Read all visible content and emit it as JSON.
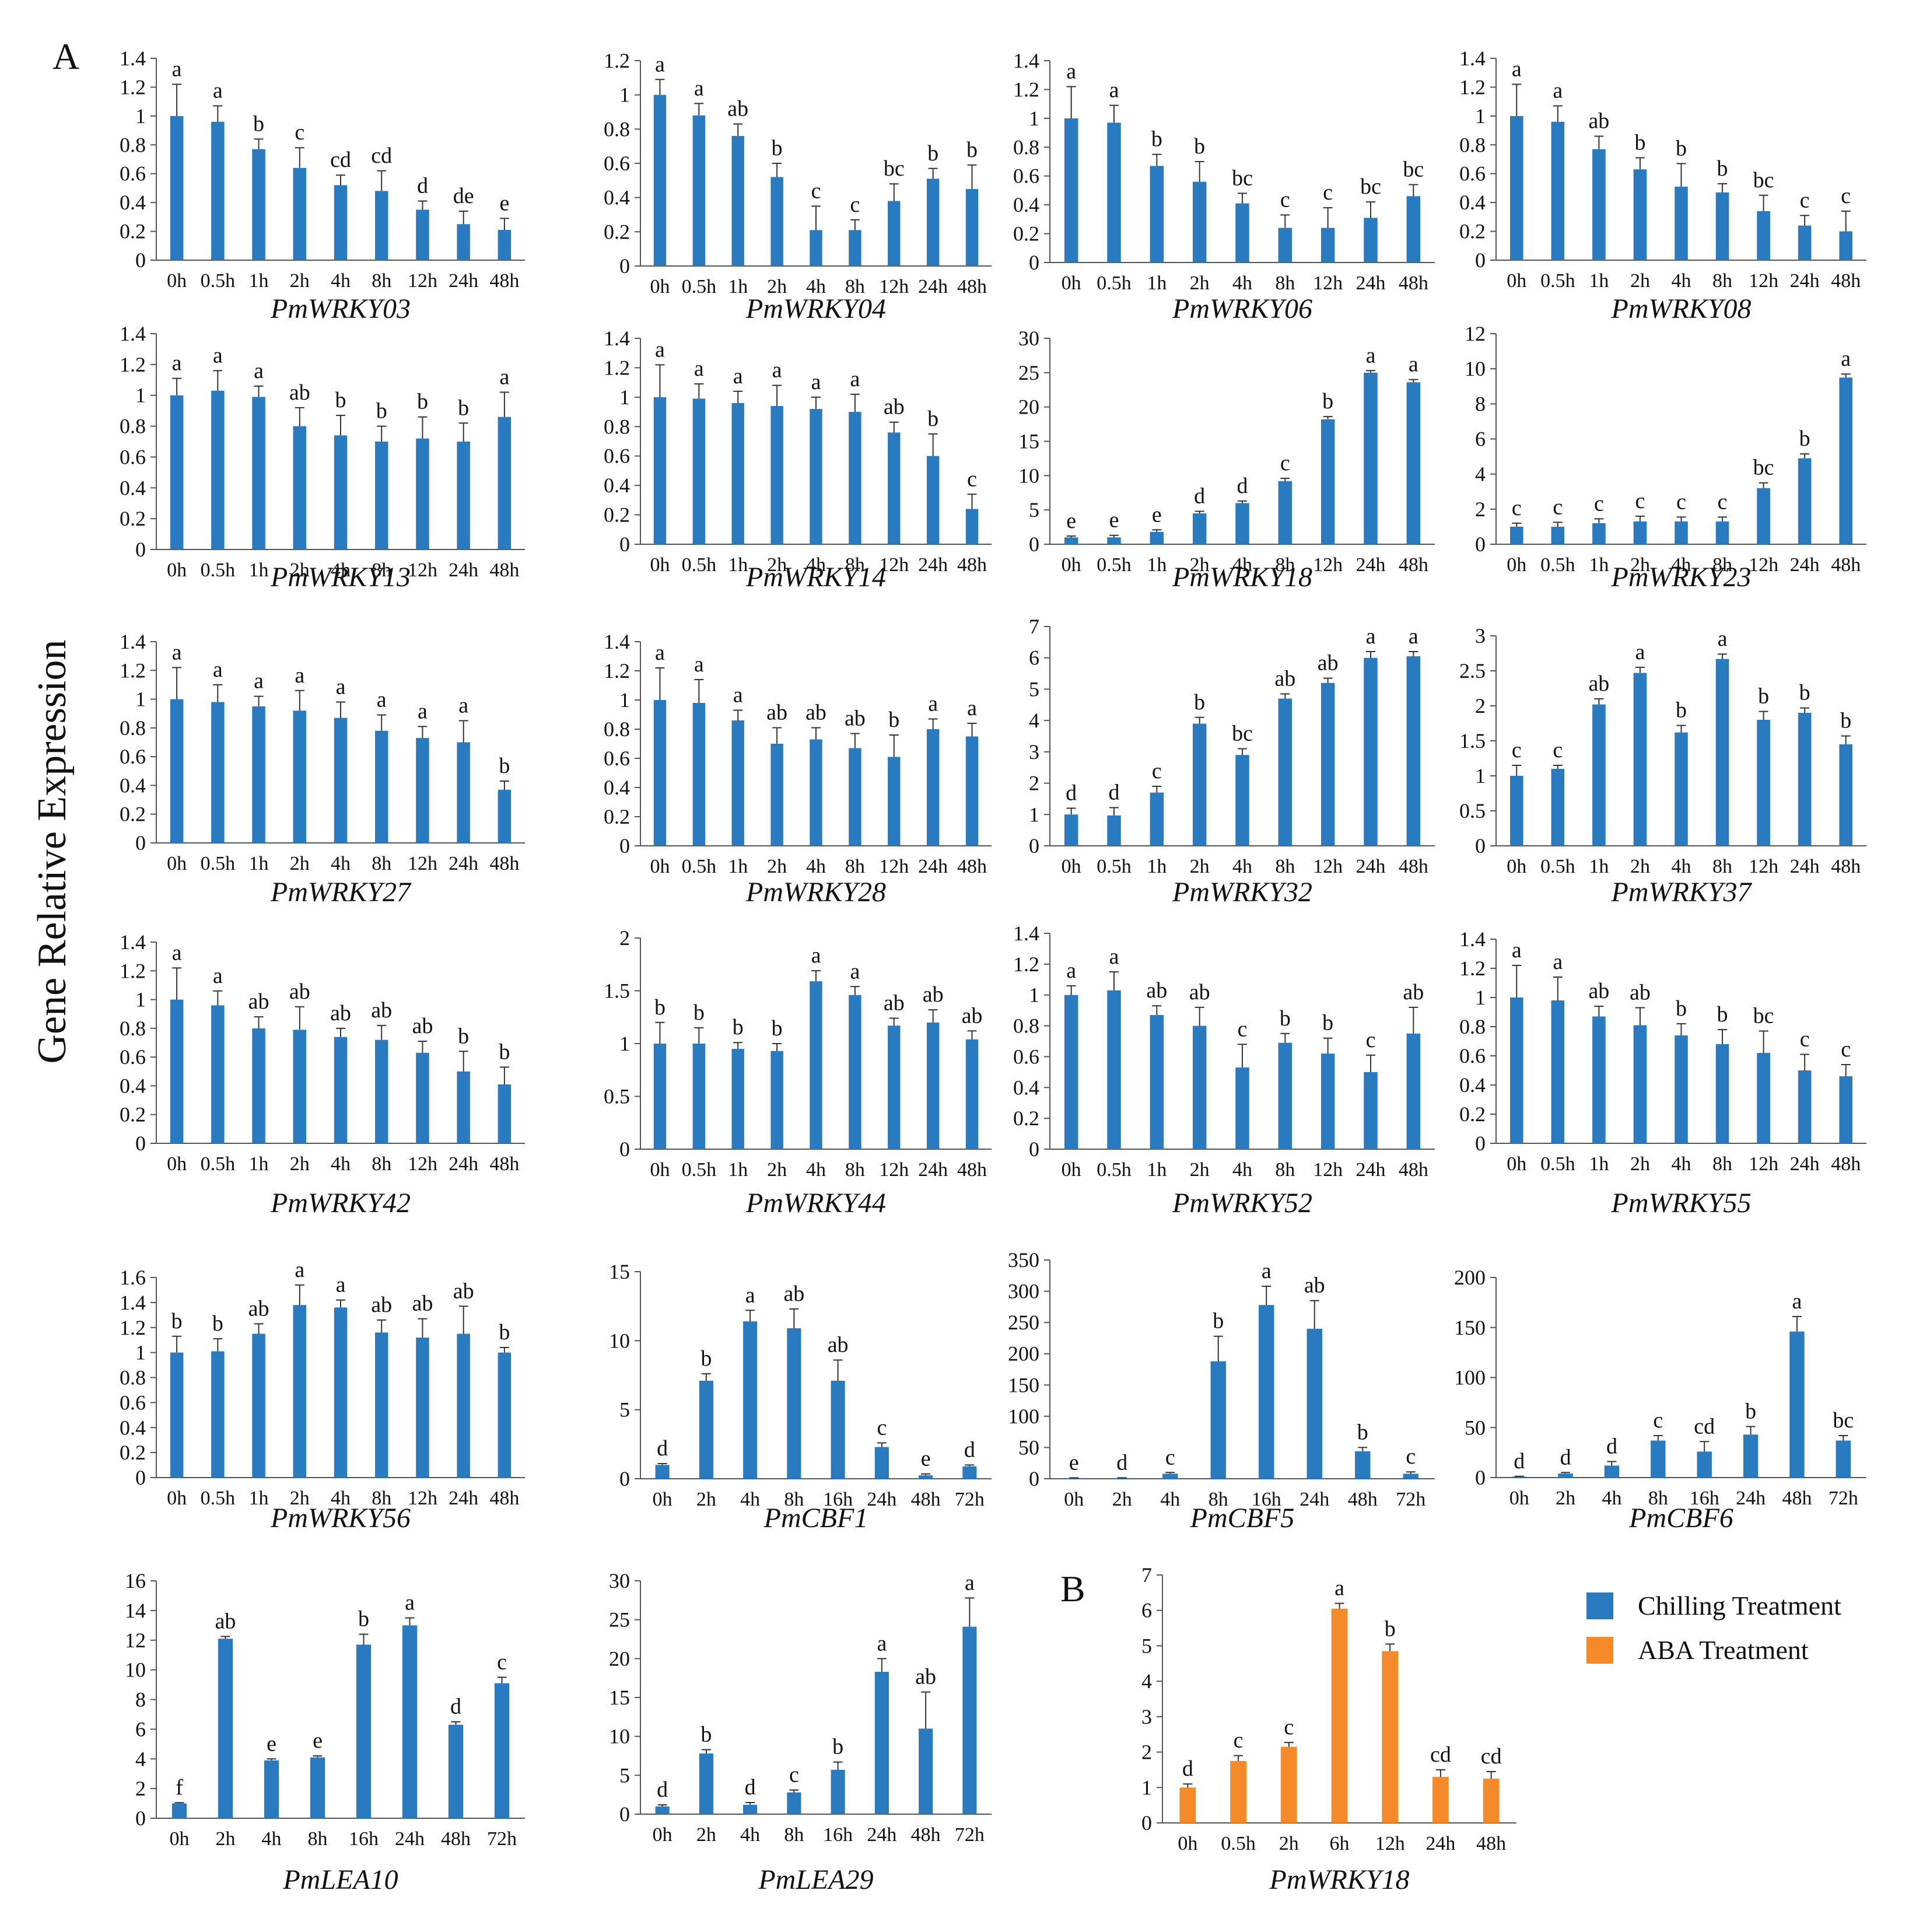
{
  "figure": {
    "panel_a_label": "A",
    "panel_b_label": "B",
    "ylabel": "Gene Relative Expression",
    "legend": [
      {
        "label": "Chilling Treatment",
        "color": "#2a7ac0"
      },
      {
        "label": "ABA Treatment",
        "color": "#f58a2a"
      }
    ]
  },
  "colors": {
    "chilling": "#2a7ac0",
    "aba": "#f58a2a",
    "axis": "#555555"
  },
  "chart_data": [
    {
      "type": "bar",
      "title": "PmWRKY03",
      "categories": [
        "0h",
        "0.5h",
        "1h",
        "2h",
        "4h",
        "8h",
        "12h",
        "24h",
        "48h"
      ],
      "values": [
        1.0,
        0.96,
        0.77,
        0.64,
        0.52,
        0.48,
        0.35,
        0.25,
        0.21
      ],
      "errors": [
        0.22,
        0.11,
        0.07,
        0.14,
        0.07,
        0.14,
        0.06,
        0.09,
        0.08
      ],
      "letters": [
        "a",
        "a",
        "b",
        "c",
        "cd",
        "cd",
        "d",
        "de",
        "e"
      ],
      "ylim": [
        0,
        1.4
      ],
      "yticks": [
        "0",
        "0.2",
        "0.4",
        "0.6",
        "0.8",
        "1",
        "1.2",
        "1.4"
      ],
      "series": "chilling"
    },
    {
      "type": "bar",
      "title": "PmWRKY04",
      "categories": [
        "0h",
        "0.5h",
        "1h",
        "2h",
        "4h",
        "8h",
        "12h",
        "24h",
        "48h"
      ],
      "values": [
        1.0,
        0.88,
        0.76,
        0.52,
        0.21,
        0.21,
        0.38,
        0.51,
        0.45
      ],
      "errors": [
        0.09,
        0.07,
        0.07,
        0.08,
        0.14,
        0.06,
        0.1,
        0.06,
        0.14
      ],
      "letters": [
        "a",
        "a",
        "ab",
        "b",
        "c",
        "c",
        "bc",
        "b",
        "b"
      ],
      "ylim": [
        0,
        1.2
      ],
      "yticks": [
        "0",
        "0.2",
        "0.4",
        "0.6",
        "0.8",
        "1",
        "1.2"
      ],
      "series": "chilling"
    },
    {
      "type": "bar",
      "title": "PmWRKY06",
      "categories": [
        "0h",
        "0.5h",
        "1h",
        "2h",
        "4h",
        "8h",
        "12h",
        "24h",
        "48h"
      ],
      "values": [
        1.0,
        0.97,
        0.67,
        0.56,
        0.41,
        0.24,
        0.24,
        0.31,
        0.46
      ],
      "errors": [
        0.22,
        0.12,
        0.08,
        0.14,
        0.07,
        0.09,
        0.14,
        0.11,
        0.08
      ],
      "letters": [
        "a",
        "a",
        "b",
        "b",
        "bc",
        "c",
        "c",
        "bc",
        "bc"
      ],
      "ylim": [
        0,
        1.4
      ],
      "yticks": [
        "0",
        "0.2",
        "0.4",
        "0.6",
        "0.8",
        "1",
        "1.2",
        "1.4"
      ],
      "series": "chilling"
    },
    {
      "type": "bar",
      "title": "PmWRKY08",
      "categories": [
        "0h",
        "0.5h",
        "1h",
        "2h",
        "4h",
        "8h",
        "12h",
        "24h",
        "48h"
      ],
      "values": [
        1.0,
        0.96,
        0.77,
        0.63,
        0.51,
        0.47,
        0.34,
        0.24,
        0.2
      ],
      "errors": [
        0.22,
        0.11,
        0.09,
        0.08,
        0.16,
        0.06,
        0.11,
        0.07,
        0.14
      ],
      "letters": [
        "a",
        "a",
        "ab",
        "b",
        "b",
        "b",
        "bc",
        "c",
        "c"
      ],
      "ylim": [
        0,
        1.4
      ],
      "yticks": [
        "0",
        "0.2",
        "0.4",
        "0.6",
        "0.8",
        "1",
        "1.2",
        "1.4"
      ],
      "series": "chilling"
    },
    {
      "type": "bar",
      "title": "PmWRKY13",
      "categories": [
        "0h",
        "0.5h",
        "1h",
        "2h",
        "4h",
        "8h",
        "12h",
        "24h",
        "48h"
      ],
      "values": [
        1.0,
        1.03,
        0.99,
        0.8,
        0.74,
        0.7,
        0.72,
        0.7,
        0.86
      ],
      "errors": [
        0.11,
        0.13,
        0.07,
        0.12,
        0.13,
        0.1,
        0.14,
        0.12,
        0.16
      ],
      "letters": [
        "a",
        "a",
        "a",
        "ab",
        "b",
        "b",
        "b",
        "b",
        "a"
      ],
      "ylim": [
        0,
        1.4
      ],
      "yticks": [
        "0",
        "0.2",
        "0.4",
        "0.6",
        "0.8",
        "1",
        "1.2",
        "1.4"
      ],
      "series": "chilling"
    },
    {
      "type": "bar",
      "title": "PmWRKY14",
      "categories": [
        "0h",
        "0.5h",
        "1h",
        "2h",
        "4h",
        "8h",
        "12h",
        "24h",
        "48h"
      ],
      "values": [
        1.0,
        0.99,
        0.96,
        0.94,
        0.92,
        0.9,
        0.76,
        0.6,
        0.24
      ],
      "errors": [
        0.22,
        0.1,
        0.08,
        0.14,
        0.08,
        0.12,
        0.07,
        0.15,
        0.1
      ],
      "letters": [
        "a",
        "a",
        "a",
        "a",
        "a",
        "a",
        "ab",
        "b",
        "c"
      ],
      "ylim": [
        0,
        1.4
      ],
      "yticks": [
        "0",
        "0.2",
        "0.4",
        "0.6",
        "0.8",
        "1",
        "1.2",
        "1.4"
      ],
      "series": "chilling"
    },
    {
      "type": "bar",
      "title": "PmWRKY18",
      "categories": [
        "0h",
        "0.5h",
        "1h",
        "2h",
        "4h",
        "8h",
        "12h",
        "24h",
        "48h"
      ],
      "values": [
        1.0,
        1.0,
        1.8,
        4.5,
        6.0,
        9.2,
        18.2,
        25.0,
        23.6
      ],
      "errors": [
        0.2,
        0.3,
        0.3,
        0.3,
        0.3,
        0.4,
        0.4,
        0.3,
        0.4
      ],
      "letters": [
        "e",
        "e",
        "e",
        "d",
        "d",
        "c",
        "b",
        "a",
        "a"
      ],
      "ylim": [
        0,
        30
      ],
      "yticks": [
        "0",
        "5",
        "10",
        "15",
        "20",
        "25",
        "30"
      ],
      "series": "chilling"
    },
    {
      "type": "bar",
      "title": "PmWRKY23",
      "categories": [
        "0h",
        "0.5h",
        "1h",
        "2h",
        "4h",
        "8h",
        "12h",
        "24h",
        "48h"
      ],
      "values": [
        1.0,
        1.0,
        1.2,
        1.3,
        1.3,
        1.3,
        3.2,
        4.9,
        9.5
      ],
      "errors": [
        0.2,
        0.25,
        0.25,
        0.3,
        0.25,
        0.25,
        0.3,
        0.25,
        0.2
      ],
      "letters": [
        "c",
        "c",
        "c",
        "c",
        "c",
        "c",
        "bc",
        "b",
        "a"
      ],
      "ylim": [
        0,
        12
      ],
      "yticks": [
        "0",
        "2",
        "4",
        "6",
        "8",
        "10",
        "12"
      ],
      "series": "chilling"
    },
    {
      "type": "bar",
      "title": "PmWRKY27",
      "categories": [
        "0h",
        "0.5h",
        "1h",
        "2h",
        "4h",
        "8h",
        "12h",
        "24h",
        "48h"
      ],
      "values": [
        1.0,
        0.98,
        0.95,
        0.92,
        0.87,
        0.78,
        0.73,
        0.7,
        0.37
      ],
      "errors": [
        0.22,
        0.12,
        0.07,
        0.14,
        0.11,
        0.11,
        0.08,
        0.15,
        0.06
      ],
      "letters": [
        "a",
        "a",
        "a",
        "a",
        "a",
        "a",
        "a",
        "a",
        "b"
      ],
      "ylim": [
        0,
        1.4
      ],
      "yticks": [
        "0",
        "0.2",
        "0.4",
        "0.6",
        "0.8",
        "1",
        "1.2",
        "1.4"
      ],
      "series": "chilling"
    },
    {
      "type": "bar",
      "title": "PmWRKY28",
      "categories": [
        "0h",
        "0.5h",
        "1h",
        "2h",
        "4h",
        "8h",
        "12h",
        "24h",
        "48h"
      ],
      "values": [
        1.0,
        0.98,
        0.86,
        0.7,
        0.73,
        0.67,
        0.61,
        0.8,
        0.75
      ],
      "errors": [
        0.22,
        0.16,
        0.07,
        0.11,
        0.08,
        0.1,
        0.15,
        0.07,
        0.09
      ],
      "letters": [
        "a",
        "a",
        "a",
        "ab",
        "ab",
        "ab",
        "b",
        "a",
        "a"
      ],
      "ylim": [
        0,
        1.4
      ],
      "yticks": [
        "0",
        "0.2",
        "0.4",
        "0.6",
        "0.8",
        "1",
        "1.2",
        "1.4"
      ],
      "series": "chilling"
    },
    {
      "type": "bar",
      "title": "PmWRKY32",
      "categories": [
        "0h",
        "0.5h",
        "1h",
        "2h",
        "4h",
        "8h",
        "12h",
        "24h",
        "48h"
      ],
      "values": [
        1.0,
        0.97,
        1.7,
        3.9,
        2.9,
        4.7,
        5.2,
        6.0,
        6.05
      ],
      "errors": [
        0.2,
        0.25,
        0.2,
        0.2,
        0.2,
        0.15,
        0.15,
        0.2,
        0.15
      ],
      "letters": [
        "d",
        "d",
        "c",
        "b",
        "bc",
        "ab",
        "ab",
        "a",
        "a"
      ],
      "ylim": [
        0,
        7
      ],
      "yticks": [
        "0",
        "1",
        "2",
        "3",
        "4",
        "5",
        "6",
        "7"
      ],
      "series": "chilling"
    },
    {
      "type": "bar",
      "title": "PmWRKY37",
      "categories": [
        "0h",
        "0.5h",
        "1h",
        "2h",
        "4h",
        "8h",
        "12h",
        "24h",
        "48h"
      ],
      "values": [
        1.0,
        1.1,
        2.02,
        2.47,
        1.62,
        2.67,
        1.8,
        1.9,
        1.45
      ],
      "errors": [
        0.15,
        0.05,
        0.08,
        0.08,
        0.1,
        0.07,
        0.12,
        0.07,
        0.12
      ],
      "letters": [
        "c",
        "c",
        "ab",
        "a",
        "b",
        "a",
        "b",
        "b",
        "b"
      ],
      "ylim": [
        0,
        3
      ],
      "yticks": [
        "0",
        "0.5",
        "1",
        "1.5",
        "2",
        "2.5",
        "3"
      ],
      "series": "chilling"
    },
    {
      "type": "bar",
      "title": "PmWRKY42",
      "categories": [
        "0h",
        "0.5h",
        "1h",
        "2h",
        "4h",
        "8h",
        "12h",
        "24h",
        "48h"
      ],
      "values": [
        1.0,
        0.96,
        0.8,
        0.79,
        0.74,
        0.72,
        0.63,
        0.5,
        0.41
      ],
      "errors": [
        0.22,
        0.1,
        0.08,
        0.16,
        0.06,
        0.1,
        0.08,
        0.14,
        0.12
      ],
      "letters": [
        "a",
        "a",
        "ab",
        "ab",
        "ab",
        "ab",
        "ab",
        "b",
        "b"
      ],
      "ylim": [
        0,
        1.4
      ],
      "yticks": [
        "0",
        "0.2",
        "0.4",
        "0.6",
        "0.8",
        "1",
        "1.2",
        "1.4"
      ],
      "series": "chilling"
    },
    {
      "type": "bar",
      "title": "PmWRKY44",
      "categories": [
        "0h",
        "0.5h",
        "1h",
        "2h",
        "4h",
        "8h",
        "12h",
        "24h",
        "48h"
      ],
      "values": [
        1.0,
        1.0,
        0.95,
        0.93,
        1.59,
        1.46,
        1.17,
        1.2,
        1.04
      ],
      "errors": [
        0.2,
        0.15,
        0.06,
        0.07,
        0.1,
        0.08,
        0.07,
        0.12,
        0.08
      ],
      "letters": [
        "b",
        "b",
        "b",
        "b",
        "a",
        "a",
        "ab",
        "ab",
        "ab"
      ],
      "ylim": [
        0,
        2
      ],
      "yticks": [
        "0",
        "0.5",
        "1",
        "1.5",
        "2"
      ],
      "series": "chilling"
    },
    {
      "type": "bar",
      "title": "PmWRKY52",
      "categories": [
        "0h",
        "0.5h",
        "1h",
        "2h",
        "4h",
        "8h",
        "12h",
        "24h",
        "48h"
      ],
      "values": [
        1.0,
        1.03,
        0.87,
        0.8,
        0.53,
        0.69,
        0.62,
        0.5,
        0.75
      ],
      "errors": [
        0.06,
        0.12,
        0.06,
        0.12,
        0.15,
        0.06,
        0.1,
        0.11,
        0.17
      ],
      "letters": [
        "a",
        "a",
        "ab",
        "ab",
        "c",
        "b",
        "b",
        "c",
        "ab"
      ],
      "ylim": [
        0,
        1.4
      ],
      "yticks": [
        "0",
        "0.2",
        "0.4",
        "0.6",
        "0.8",
        "1",
        "1.2",
        "1.4"
      ],
      "series": "chilling"
    },
    {
      "type": "bar",
      "title": "PmWRKY55",
      "categories": [
        "0h",
        "0.5h",
        "1h",
        "2h",
        "4h",
        "8h",
        "12h",
        "24h",
        "48h"
      ],
      "values": [
        1.0,
        0.98,
        0.87,
        0.81,
        0.74,
        0.68,
        0.62,
        0.5,
        0.46
      ],
      "errors": [
        0.22,
        0.16,
        0.07,
        0.12,
        0.08,
        0.1,
        0.15,
        0.11,
        0.08
      ],
      "letters": [
        "a",
        "a",
        "ab",
        "ab",
        "b",
        "b",
        "bc",
        "c",
        "c"
      ],
      "ylim": [
        0,
        1.4
      ],
      "yticks": [
        "0",
        "0.2",
        "0.4",
        "0.6",
        "0.8",
        "1",
        "1.2",
        "1.4"
      ],
      "series": "chilling"
    },
    {
      "type": "bar",
      "title": "PmWRKY56",
      "categories": [
        "0h",
        "0.5h",
        "1h",
        "2h",
        "4h",
        "8h",
        "12h",
        "24h",
        "48h"
      ],
      "values": [
        1.0,
        1.01,
        1.15,
        1.38,
        1.36,
        1.16,
        1.12,
        1.15,
        1.0
      ],
      "errors": [
        0.13,
        0.1,
        0.08,
        0.16,
        0.06,
        0.1,
        0.15,
        0.22,
        0.04
      ],
      "letters": [
        "b",
        "b",
        "ab",
        "a",
        "a",
        "ab",
        "ab",
        "ab",
        "b"
      ],
      "ylim": [
        0,
        1.6
      ],
      "yticks": [
        "0",
        "0.2",
        "0.4",
        "0.6",
        "0.8",
        "1",
        "1.2",
        "1.4",
        "1.6"
      ],
      "series": "chilling"
    },
    {
      "type": "bar",
      "title": "PmCBF1",
      "categories": [
        "0h",
        "2h",
        "4h",
        "8h",
        "16h",
        "24h",
        "48h",
        "72h"
      ],
      "values": [
        1.0,
        7.1,
        11.4,
        10.9,
        7.1,
        2.3,
        0.25,
        0.9
      ],
      "errors": [
        0.1,
        0.5,
        0.8,
        1.4,
        1.5,
        0.3,
        0.1,
        0.1
      ],
      "letters": [
        "d",
        "b",
        "a",
        "ab",
        "ab",
        "c",
        "e",
        "d"
      ],
      "ylim": [
        0,
        15
      ],
      "yticks": [
        "0",
        "5",
        "10",
        "15"
      ],
      "series": "chilling"
    },
    {
      "type": "bar",
      "title": "PmCBF5",
      "categories": [
        "0h",
        "2h",
        "4h",
        "8h",
        "16h",
        "24h",
        "48h",
        "72h"
      ],
      "values": [
        1,
        1,
        8,
        188,
        278,
        240,
        44,
        8
      ],
      "errors": [
        0.5,
        0.5,
        2,
        40,
        30,
        45,
        6,
        3
      ],
      "letters": [
        "e",
        "d",
        "c",
        "b",
        "a",
        "ab",
        "b",
        "c"
      ],
      "ylim": [
        0,
        350
      ],
      "yticks": [
        "0",
        "50",
        "100",
        "150",
        "200",
        "250",
        "300",
        "350"
      ],
      "series": "chilling"
    },
    {
      "type": "bar",
      "title": "PmCBF6",
      "categories": [
        "0h",
        "2h",
        "4h",
        "8h",
        "16h",
        "24h",
        "48h",
        "72h"
      ],
      "values": [
        1,
        4,
        12,
        37,
        26,
        43,
        146,
        37
      ],
      "errors": [
        0.3,
        1,
        4,
        5,
        10,
        8,
        15,
        5
      ],
      "letters": [
        "d",
        "d",
        "d",
        "c",
        "cd",
        "b",
        "a",
        "bc"
      ],
      "ylim": [
        0,
        200
      ],
      "yticks": [
        "0",
        "50",
        "100",
        "150",
        "200"
      ],
      "series": "chilling"
    },
    {
      "type": "bar",
      "title": "PmLEA10",
      "categories": [
        "0h",
        "2h",
        "4h",
        "8h",
        "16h",
        "24h",
        "48h",
        "72h"
      ],
      "values": [
        1.0,
        12.1,
        3.9,
        4.1,
        11.7,
        13.0,
        6.3,
        9.1
      ],
      "errors": [
        0.05,
        0.15,
        0.1,
        0.1,
        0.7,
        0.5,
        0.2,
        0.4
      ],
      "letters": [
        "f",
        "ab",
        "e",
        "e",
        "b",
        "a",
        "d",
        "c"
      ],
      "ylim": [
        0,
        16
      ],
      "yticks": [
        "0",
        "2",
        "4",
        "6",
        "8",
        "10",
        "12",
        "14",
        "16"
      ],
      "series": "chilling"
    },
    {
      "type": "bar",
      "title": "PmLEA29",
      "categories": [
        "0h",
        "2h",
        "4h",
        "8h",
        "16h",
        "24h",
        "48h",
        "72h"
      ],
      "values": [
        1.0,
        7.8,
        1.2,
        2.8,
        5.7,
        18.3,
        11.0,
        24.1
      ],
      "errors": [
        0.2,
        0.5,
        0.3,
        0.3,
        1.0,
        1.7,
        4.7,
        3.7
      ],
      "letters": [
        "d",
        "b",
        "d",
        "c",
        "b",
        "a",
        "ab",
        "a"
      ],
      "ylim": [
        0,
        30
      ],
      "yticks": [
        "0",
        "5",
        "10",
        "15",
        "20",
        "25",
        "30"
      ],
      "series": "chilling"
    },
    {
      "type": "bar",
      "title": "PmWRKY18",
      "categories": [
        "0h",
        "0.5h",
        "2h",
        "6h",
        "12h",
        "24h",
        "48h"
      ],
      "values": [
        1.0,
        1.75,
        2.15,
        6.05,
        4.85,
        1.3,
        1.25
      ],
      "errors": [
        0.1,
        0.15,
        0.12,
        0.15,
        0.2,
        0.2,
        0.2
      ],
      "letters": [
        "d",
        "c",
        "c",
        "a",
        "b",
        "cd",
        "cd"
      ],
      "ylim": [
        0,
        7
      ],
      "yticks": [
        "0",
        "1",
        "2",
        "3",
        "4",
        "5",
        "6",
        "7"
      ],
      "series": "aba"
    }
  ]
}
